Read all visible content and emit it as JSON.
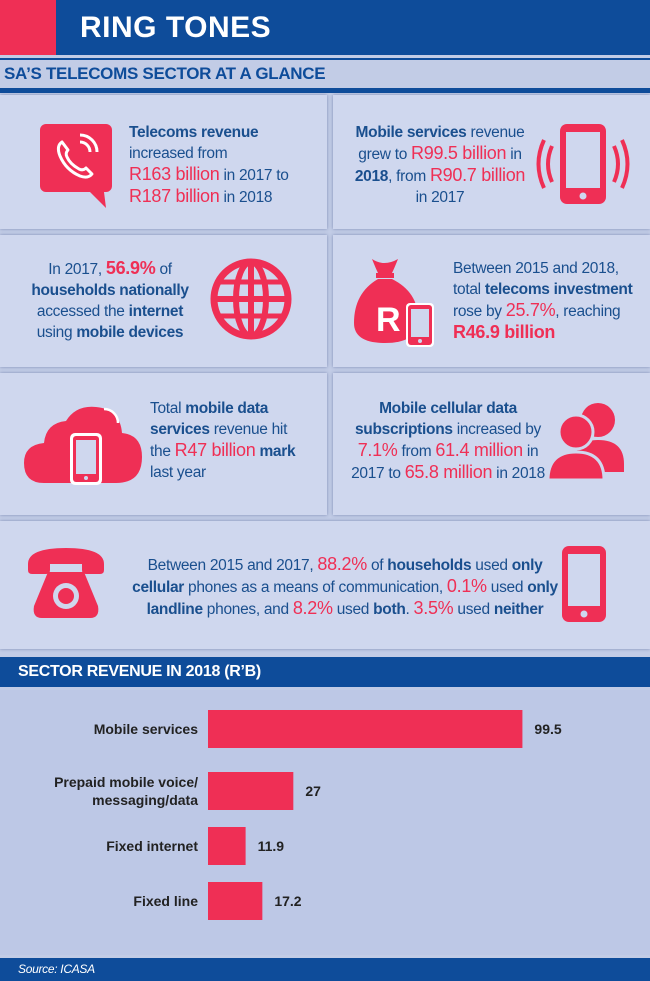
{
  "header": {
    "title": "RING TONES"
  },
  "section1": {
    "title": "SA’S TELECOMS SECTOR AT A GLANCE"
  },
  "facts": {
    "f1": {
      "a": "Telecoms revenue",
      "b": "increased from",
      "c": "R163 billion",
      "d": "in 2017 to",
      "e": "R187 billion",
      "f": "in 2018"
    },
    "f2": {
      "a": "Mobile services",
      "b": "revenue",
      "c": "grew to",
      "d": "R99.5 billion",
      "e": "in",
      "f": "2018",
      "g": ", from",
      "h": "R90.7 billion",
      "i": "in 2017"
    },
    "f3": {
      "a": "In 2017,",
      "b": "56.9%",
      "c": "of",
      "d": "households nationally",
      "e": "accessed the",
      "f": "internet",
      "g": "using",
      "h": "mobile devices"
    },
    "f4": {
      "a": "Between 2015 and 2018,",
      "b": "total",
      "c": "telecoms investment",
      "d": "rose by",
      "e": "25.7%",
      "f": ", reaching",
      "g": "R46.9 billion"
    },
    "f5": {
      "a": "Total",
      "b": "mobile data",
      "c": "services",
      "d": "revenue hit",
      "e": "the",
      "f": "R47 billion",
      "g": "mark",
      "h": "last year"
    },
    "f6": {
      "a": "Mobile cellular data",
      "b": "subscriptions",
      "c": "increased by",
      "d": "7.1%",
      "e": "from",
      "f": "61.4 million",
      "g": "in",
      "h": "2017 to",
      "i": "65.8 million",
      "j": "in 2018"
    },
    "f7": {
      "a": "Between 2015 and 2017,",
      "b": "88.2%",
      "c": "of",
      "d": "households",
      "e": "used",
      "f": "only",
      "g": "cellular",
      "h": "phones as a means of communication,",
      "i": "0.1%",
      "j": "used",
      "k": "only",
      "l": "landline",
      "m": "phones, and",
      "n": "8.2%",
      "o": "used",
      "p": "both",
      "q": ".",
      "r": "3.5%",
      "s": "used",
      "t": "neither"
    }
  },
  "icons": [
    "phone-chat-icon",
    "smartphone-vibrate-icon",
    "globe-icon",
    "money-bag-phone-icon",
    "cloud-phone-icon",
    "users-icon",
    "rotary-phone-icon",
    "smartphone-icon"
  ],
  "section2": {
    "title": "SECTOR REVENUE IN 2018 (R’B)"
  },
  "chart_data": {
    "type": "bar",
    "orientation": "horizontal",
    "title": "SECTOR REVENUE IN 2018 (R’B)",
    "categories": [
      "Mobile services",
      "Prepaid mobile voice/ messaging/data",
      "Fixed internet",
      "Fixed line"
    ],
    "category_lines": [
      [
        "Mobile services"
      ],
      [
        "Prepaid mobile voice/",
        "messaging/data"
      ],
      [
        "Fixed internet"
      ],
      [
        "Fixed line"
      ]
    ],
    "values": [
      99.5,
      27,
      11.9,
      17.2
    ],
    "value_labels": [
      "99.5",
      "27",
      "11.9",
      "17.2"
    ],
    "xlim": [
      0,
      100
    ],
    "grid": false,
    "bar_color": "#ef2f55"
  },
  "footer": {
    "source": "Source: ICASA"
  },
  "colors": {
    "navy": "#0e4c9a",
    "accent": "#ef2f55",
    "panel": "#cfd7ee",
    "text": "#1a4f8e"
  }
}
